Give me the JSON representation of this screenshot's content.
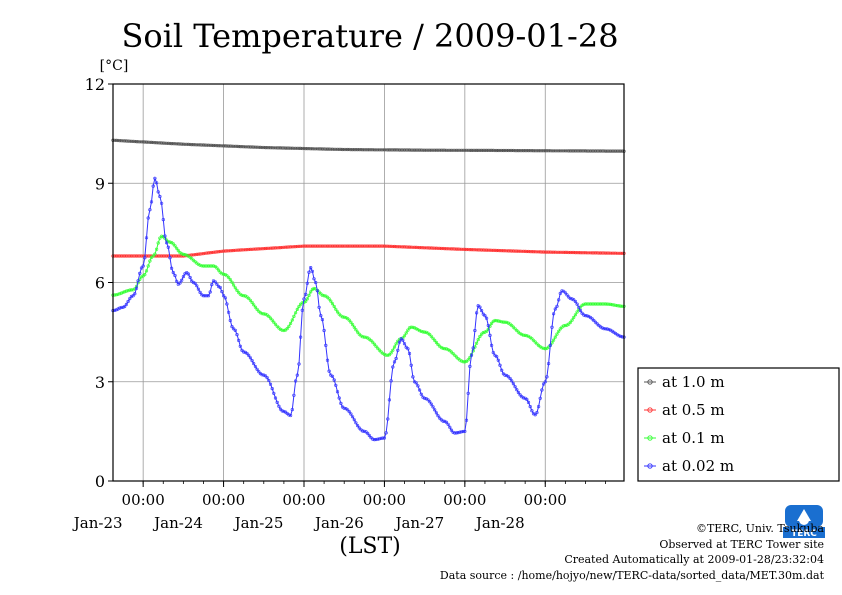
{
  "chart_data": {
    "type": "line",
    "title": "Soil Temperature / 2009-01-28",
    "ylabel": "[°C]",
    "xlabel": "(LST)",
    "ylim": [
      0,
      12
    ],
    "yticks": [
      "0",
      "3",
      "6",
      "9",
      "12"
    ],
    "x_range_days": [
      "2009-01-22T15:00",
      "2009-01-28T23:30"
    ],
    "time_tick_label": "00:00",
    "date_ticks": [
      "Jan-23",
      "Jan-24",
      "Jan-25",
      "Jan-26",
      "Jan-27",
      "Jan-28"
    ],
    "grid": true,
    "legend_position": "right",
    "series": [
      {
        "name": "at 1.0 m",
        "color": "#555555",
        "points": [
          [
            "2009-01-22T15:00",
            10.3
          ],
          [
            "2009-01-23T12:00",
            10.18
          ],
          [
            "2009-01-24T12:00",
            10.08
          ],
          [
            "2009-01-25T12:00",
            10.02
          ],
          [
            "2009-01-26T12:00",
            10.0
          ],
          [
            "2009-01-27T12:00",
            9.99
          ],
          [
            "2009-01-28T23:30",
            9.97
          ]
        ]
      },
      {
        "name": "at 0.5 m",
        "color": "#ff3333",
        "points": [
          [
            "2009-01-22T15:00",
            6.8
          ],
          [
            "2009-01-23T12:00",
            6.8
          ],
          [
            "2009-01-24T00:00",
            6.95
          ],
          [
            "2009-01-25T00:00",
            7.1
          ],
          [
            "2009-01-26T00:00",
            7.1
          ],
          [
            "2009-01-27T00:00",
            7.0
          ],
          [
            "2009-01-28T00:00",
            6.92
          ],
          [
            "2009-01-28T23:30",
            6.88
          ]
        ]
      },
      {
        "name": "at 0.1 m",
        "color": "#33ff33",
        "points": [
          [
            "2009-01-22T15:00",
            5.62
          ],
          [
            "2009-01-22T21:00",
            5.78
          ],
          [
            "2009-01-23T00:00",
            6.2
          ],
          [
            "2009-01-23T03:00",
            6.8
          ],
          [
            "2009-01-23T05:30",
            7.4
          ],
          [
            "2009-01-23T08:00",
            7.22
          ],
          [
            "2009-01-23T12:00",
            6.85
          ],
          [
            "2009-01-23T18:00",
            6.5
          ],
          [
            "2009-01-23T21:00",
            6.5
          ],
          [
            "2009-01-24T00:00",
            6.25
          ],
          [
            "2009-01-24T06:00",
            5.6
          ],
          [
            "2009-01-24T12:00",
            5.05
          ],
          [
            "2009-01-24T18:00",
            4.55
          ],
          [
            "2009-01-25T00:00",
            5.4
          ],
          [
            "2009-01-25T03:00",
            5.82
          ],
          [
            "2009-01-25T06:00",
            5.6
          ],
          [
            "2009-01-25T12:00",
            4.95
          ],
          [
            "2009-01-25T18:00",
            4.35
          ],
          [
            "2009-01-26T01:00",
            3.8
          ],
          [
            "2009-01-26T05:00",
            4.3
          ],
          [
            "2009-01-26T08:00",
            4.65
          ],
          [
            "2009-01-26T12:00",
            4.5
          ],
          [
            "2009-01-26T18:00",
            4.0
          ],
          [
            "2009-01-27T00:00",
            3.6
          ],
          [
            "2009-01-27T06:00",
            4.5
          ],
          [
            "2009-01-27T09:00",
            4.85
          ],
          [
            "2009-01-27T12:00",
            4.8
          ],
          [
            "2009-01-27T18:00",
            4.4
          ],
          [
            "2009-01-28T00:00",
            4.0
          ],
          [
            "2009-01-28T06:00",
            4.7
          ],
          [
            "2009-01-28T12:00",
            5.35
          ],
          [
            "2009-01-28T18:00",
            5.35
          ],
          [
            "2009-01-28T23:30",
            5.28
          ]
        ]
      },
      {
        "name": "at 0.02 m",
        "color": "#3333ff",
        "points": [
          [
            "2009-01-22T15:00",
            5.15
          ],
          [
            "2009-01-22T18:00",
            5.25
          ],
          [
            "2009-01-22T21:00",
            5.6
          ],
          [
            "2009-01-23T00:00",
            6.5
          ],
          [
            "2009-01-23T02:00",
            8.2
          ],
          [
            "2009-01-23T03:30",
            9.15
          ],
          [
            "2009-01-23T05:00",
            8.6
          ],
          [
            "2009-01-23T07:00",
            7.2
          ],
          [
            "2009-01-23T09:00",
            6.3
          ],
          [
            "2009-01-23T10:30",
            5.95
          ],
          [
            "2009-01-23T13:00",
            6.3
          ],
          [
            "2009-01-23T15:00",
            6.0
          ],
          [
            "2009-01-23T18:00",
            5.6
          ],
          [
            "2009-01-23T19:30",
            5.6
          ],
          [
            "2009-01-23T21:00",
            6.05
          ],
          [
            "2009-01-23T23:00",
            5.85
          ],
          [
            "2009-01-24T00:00",
            5.6
          ],
          [
            "2009-01-24T03:00",
            4.6
          ],
          [
            "2009-01-24T06:00",
            3.9
          ],
          [
            "2009-01-24T12:00",
            3.2
          ],
          [
            "2009-01-24T18:00",
            2.1
          ],
          [
            "2009-01-24T20:00",
            1.98
          ],
          [
            "2009-01-24T22:00",
            3.2
          ],
          [
            "2009-01-25T00:00",
            5.5
          ],
          [
            "2009-01-25T02:00",
            6.45
          ],
          [
            "2009-01-25T03:30",
            6.0
          ],
          [
            "2009-01-25T05:00",
            5.0
          ],
          [
            "2009-01-25T08:00",
            3.2
          ],
          [
            "2009-01-25T12:00",
            2.2
          ],
          [
            "2009-01-25T18:00",
            1.5
          ],
          [
            "2009-01-25T21:00",
            1.25
          ],
          [
            "2009-01-26T00:00",
            1.3
          ],
          [
            "2009-01-26T03:00",
            3.6
          ],
          [
            "2009-01-26T05:00",
            4.3
          ],
          [
            "2009-01-26T07:00",
            4.0
          ],
          [
            "2009-01-26T09:00",
            3.0
          ],
          [
            "2009-01-26T12:00",
            2.5
          ],
          [
            "2009-01-26T18:00",
            1.8
          ],
          [
            "2009-01-26T21:00",
            1.45
          ],
          [
            "2009-01-27T00:00",
            1.5
          ],
          [
            "2009-01-27T02:00",
            3.8
          ],
          [
            "2009-01-27T04:00",
            5.3
          ],
          [
            "2009-01-27T06:00",
            5.0
          ],
          [
            "2009-01-27T09:00",
            3.8
          ],
          [
            "2009-01-27T12:00",
            3.2
          ],
          [
            "2009-01-27T18:00",
            2.5
          ],
          [
            "2009-01-27T21:00",
            2.0
          ],
          [
            "2009-01-28T00:00",
            3.0
          ],
          [
            "2009-01-28T03:00",
            5.2
          ],
          [
            "2009-01-28T05:00",
            5.75
          ],
          [
            "2009-01-28T08:00",
            5.5
          ],
          [
            "2009-01-28T12:00",
            5.0
          ],
          [
            "2009-01-28T18:00",
            4.6
          ],
          [
            "2009-01-28T23:30",
            4.35
          ]
        ]
      }
    ]
  },
  "credits": {
    "copyright": "©TERC, Univ. Tsukuba",
    "observed": "Observed at TERC Tower site",
    "created": "Created Automatically at 2009-01-28/23:32:04",
    "source": "Data source : /home/hojyo/new/TERC-data/sorted_data/MET.30m.dat"
  },
  "logo": {
    "text": "TERC",
    "color": "#1a6fd0"
  }
}
